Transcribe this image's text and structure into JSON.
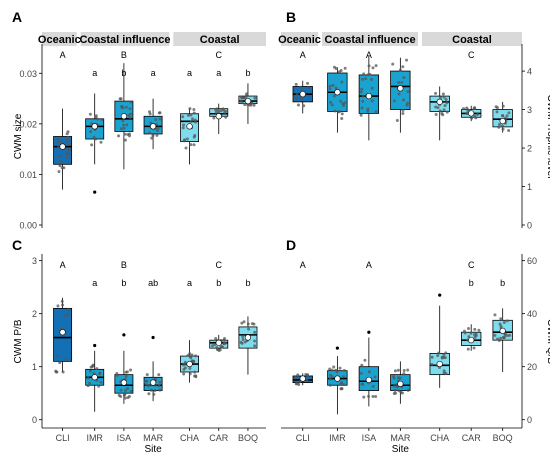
{
  "colors": {
    "CLI": "#1470b4",
    "IMR": "#1aa3d1",
    "ISA": "#1aa3d1",
    "MAR": "#1aa3d1",
    "CHA": "#7fdcef",
    "CAR": "#7fdcef",
    "BOQ": "#7fdcef",
    "strip_bg": "#d9d9d9",
    "point": "#555555"
  },
  "chart_data": [
    {
      "type": "box",
      "panel": "A",
      "ylabel": "CWM size",
      "xlabel": "",
      "axis_side": "left",
      "ylim": [
        0,
        0.035
      ],
      "yticks": [
        0.0,
        0.01,
        0.02,
        0.03
      ],
      "ytick_labels": [
        "0.00",
        "0.01",
        "0.02",
        "0.03"
      ],
      "show_xticks": false,
      "group_labels": [
        "Oceanic",
        "Coastal influence",
        "Coastal"
      ],
      "group_letters": [
        "A",
        "B",
        "C"
      ],
      "categories": [
        "CLI",
        "IMR",
        "ISA",
        "MAR",
        "CHA",
        "CAR",
        "BOQ"
      ],
      "letters": [
        "",
        "a",
        "b",
        "a",
        "a",
        "a",
        "b"
      ],
      "boxes": [
        {
          "site": "CLI",
          "min": 0.007,
          "q1": 0.012,
          "median": 0.0155,
          "q3": 0.0175,
          "max": 0.023,
          "mean": 0.0155
        },
        {
          "site": "IMR",
          "min": 0.012,
          "q1": 0.017,
          "median": 0.0195,
          "q3": 0.021,
          "max": 0.026,
          "mean": 0.0195
        },
        {
          "site": "ISA",
          "min": 0.011,
          "q1": 0.0185,
          "median": 0.021,
          "q3": 0.0245,
          "max": 0.032,
          "mean": 0.0215
        },
        {
          "site": "MAR",
          "min": 0.015,
          "q1": 0.018,
          "median": 0.0195,
          "q3": 0.0215,
          "max": 0.025,
          "mean": 0.0195
        },
        {
          "site": "CHA",
          "min": 0.012,
          "q1": 0.0165,
          "median": 0.0205,
          "q3": 0.022,
          "max": 0.023,
          "mean": 0.0195
        },
        {
          "site": "CAR",
          "min": 0.018,
          "q1": 0.0215,
          "median": 0.022,
          "q3": 0.023,
          "max": 0.024,
          "mean": 0.0215
        },
        {
          "site": "BOQ",
          "min": 0.02,
          "q1": 0.024,
          "median": 0.0245,
          "q3": 0.0255,
          "max": 0.028,
          "mean": 0.0245
        }
      ],
      "outliers": [
        {
          "site": "IMR",
          "y": 0.0065
        }
      ]
    },
    {
      "type": "box",
      "panel": "B",
      "ylabel": "CWM Trophic level",
      "xlabel": "",
      "axis_side": "right",
      "ylim": [
        0,
        4.6
      ],
      "yticks": [
        0,
        1,
        2,
        3,
        4
      ],
      "ytick_labels": [
        "0",
        "1",
        "2",
        "3",
        "4"
      ],
      "show_xticks": false,
      "group_labels": [
        "Oceanic",
        "Coastal influence",
        "Coastal"
      ],
      "group_letters": [
        "A",
        "A",
        "C"
      ],
      "categories": [
        "CLI",
        "IMR",
        "ISA",
        "MAR",
        "CHA",
        "CAR",
        "BOQ"
      ],
      "letters": [
        "",
        "",
        "",
        "",
        "",
        "",
        ""
      ],
      "boxes": [
        {
          "site": "CLI",
          "min": 2.9,
          "q1": 3.2,
          "median": 3.4,
          "q3": 3.6,
          "max": 3.75,
          "mean": 3.4
        },
        {
          "site": "ISA",
          "min": 2.2,
          "q1": 2.9,
          "median": 3.35,
          "q3": 3.9,
          "max": 4.4,
          "mean": 3.35
        },
        {
          "site": "IMR",
          "min": 2.4,
          "q1": 2.95,
          "median": 3.45,
          "q3": 3.95,
          "max": 4.1,
          "mean": 3.45
        },
        {
          "site": "MAR",
          "min": 2.4,
          "q1": 3.0,
          "median": 3.6,
          "q3": 4.0,
          "max": 4.35,
          "mean": 3.55
        },
        {
          "site": "CHA",
          "min": 2.2,
          "q1": 2.95,
          "median": 3.2,
          "q3": 3.35,
          "max": 3.6,
          "mean": 3.2
        },
        {
          "site": "CAR",
          "min": 2.7,
          "q1": 2.8,
          "median": 2.9,
          "q3": 3.0,
          "max": 3.1,
          "mean": 2.9
        },
        {
          "site": "BOQ",
          "min": 2.4,
          "q1": 2.55,
          "median": 2.75,
          "q3": 3.0,
          "max": 3.2,
          "mean": 2.7
        }
      ],
      "outliers": []
    },
    {
      "type": "box",
      "panel": "C",
      "ylabel": "CWM P/B",
      "xlabel": "Site",
      "axis_side": "left",
      "ylim": [
        -0.1,
        3.05
      ],
      "yticks": [
        0,
        1,
        2,
        3
      ],
      "ytick_labels": [
        "0",
        "1",
        "2",
        "3"
      ],
      "show_xticks": true,
      "group_labels": [],
      "group_letters": [
        "A",
        "B",
        "C"
      ],
      "categories": [
        "CLI",
        "IMR",
        "ISA",
        "MAR",
        "CHA",
        "CAR",
        "BOQ"
      ],
      "letters": [
        "",
        "a",
        "b",
        "ab",
        "a",
        "b",
        "b"
      ],
      "boxes": [
        {
          "site": "CLI",
          "min": 0.9,
          "q1": 1.1,
          "median": 1.55,
          "q3": 2.1,
          "max": 2.3,
          "mean": 1.65
        },
        {
          "site": "IMR",
          "min": 0.15,
          "q1": 0.65,
          "median": 0.8,
          "q3": 0.95,
          "max": 1.3,
          "mean": 0.8
        },
        {
          "site": "ISA",
          "min": 0.3,
          "q1": 0.5,
          "median": 0.65,
          "q3": 0.85,
          "max": 1.3,
          "mean": 0.7
        },
        {
          "site": "MAR",
          "min": 0.35,
          "q1": 0.55,
          "median": 0.65,
          "q3": 0.8,
          "max": 1.1,
          "mean": 0.7
        },
        {
          "site": "CHA",
          "min": 0.7,
          "q1": 0.9,
          "median": 1.05,
          "q3": 1.2,
          "max": 1.5,
          "mean": 1.05
        },
        {
          "site": "CAR",
          "min": 1.3,
          "q1": 1.35,
          "median": 1.45,
          "q3": 1.5,
          "max": 1.6,
          "mean": 1.45
        },
        {
          "site": "BOQ",
          "min": 0.85,
          "q1": 1.35,
          "median": 1.6,
          "q3": 1.75,
          "max": 1.95,
          "mean": 1.55
        }
      ],
      "outliers": [
        {
          "site": "ISA",
          "y": 1.6
        },
        {
          "site": "MAR",
          "y": 1.55
        },
        {
          "site": "IMR",
          "y": 1.4
        }
      ]
    },
    {
      "type": "box",
      "panel": "D",
      "ylabel": "CWM Q/B",
      "xlabel": "Site",
      "axis_side": "right",
      "ylim": [
        -2,
        61
      ],
      "yticks": [
        0,
        20,
        40,
        60
      ],
      "ytick_labels": [
        "0",
        "20",
        "40",
        "60"
      ],
      "show_xticks": true,
      "group_labels": [],
      "group_letters": [
        "A",
        "A",
        "C"
      ],
      "categories": [
        "CLI",
        "IMR",
        "ISA",
        "MAR",
        "CHA",
        "CAR",
        "BOQ"
      ],
      "letters": [
        "",
        "",
        "",
        "",
        "",
        "b",
        "b"
      ],
      "boxes": [
        {
          "site": "CLI",
          "min": 13,
          "q1": 14,
          "median": 15,
          "q3": 16.5,
          "max": 17.5,
          "mean": 15.5
        },
        {
          "site": "IMR",
          "min": 2,
          "q1": 13,
          "median": 15.5,
          "q3": 18.5,
          "max": 24,
          "mean": 15.5
        },
        {
          "site": "ISA",
          "min": 5,
          "q1": 11,
          "median": 14.5,
          "q3": 20,
          "max": 31,
          "mean": 15
        },
        {
          "site": "MAR",
          "min": 6,
          "q1": 11,
          "median": 13,
          "q3": 17,
          "max": 22,
          "mean": 13.5
        },
        {
          "site": "CHA",
          "min": 12,
          "q1": 17,
          "median": 20.5,
          "q3": 25,
          "max": 43,
          "mean": 21
        },
        {
          "site": "CAR",
          "min": 26,
          "q1": 28,
          "median": 30,
          "q3": 33,
          "max": 36,
          "mean": 30
        },
        {
          "site": "BOQ",
          "min": 18,
          "q1": 30,
          "median": 33,
          "q3": 37.5,
          "max": 42,
          "mean": 33.5
        }
      ],
      "outliers": [
        {
          "site": "ISA",
          "y": 33
        },
        {
          "site": "CHA",
          "y": 47
        },
        {
          "site": "IMR",
          "y": 27
        }
      ]
    }
  ]
}
